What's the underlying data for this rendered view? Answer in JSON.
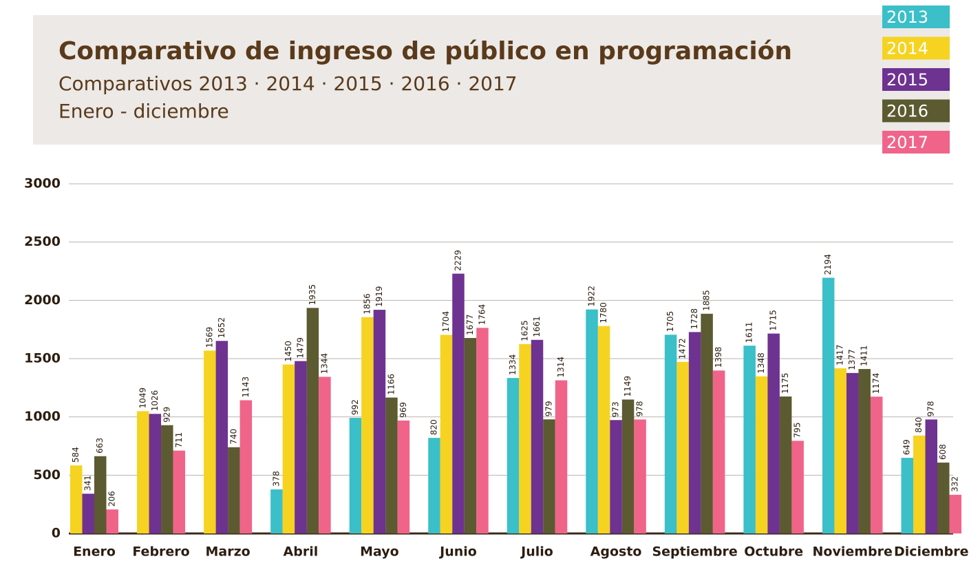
{
  "chart_data": {
    "type": "bar",
    "title": "Comparativo de ingreso de público en programación",
    "subtitle": "Comparativos 2013 · 2014 · 2015 · 2016 · 2017",
    "subtitle2": "Enero - diciembre",
    "categories": [
      "Enero",
      "Febrero",
      "Marzo",
      "Abril",
      "Mayo",
      "Junio",
      "Julio",
      "Agosto",
      "Septiembre",
      "Octubre",
      "Noviembre",
      "Diciembre"
    ],
    "series": [
      {
        "name": "2013",
        "color": "#3bbfc8",
        "values": [
          null,
          null,
          null,
          378,
          992,
          820,
          1334,
          1922,
          1705,
          1611,
          2194,
          649
        ]
      },
      {
        "name": "2014",
        "color": "#f5d320",
        "values": [
          584,
          1049,
          1569,
          1450,
          1856,
          1704,
          1625,
          1780,
          1472,
          1348,
          1417,
          840
        ]
      },
      {
        "name": "2015",
        "color": "#6e3291",
        "values": [
          341,
          1026,
          1652,
          1479,
          1919,
          2229,
          1661,
          973,
          1728,
          1715,
          1377,
          978
        ]
      },
      {
        "name": "2016",
        "color": "#5c5a30",
        "values": [
          663,
          929,
          740,
          1935,
          1166,
          1677,
          979,
          1149,
          1885,
          1175,
          1411,
          608
        ]
      },
      {
        "name": "2017",
        "color": "#f0648a",
        "values": [
          206,
          711,
          1143,
          1344,
          969,
          1764,
          1314,
          978,
          1398,
          795,
          1174,
          332
        ]
      }
    ],
    "ylim": [
      0,
      3000
    ],
    "yticks": [
      0,
      500,
      1000,
      1500,
      2000,
      2500,
      3000
    ],
    "grid": true,
    "legend": "top-right"
  }
}
